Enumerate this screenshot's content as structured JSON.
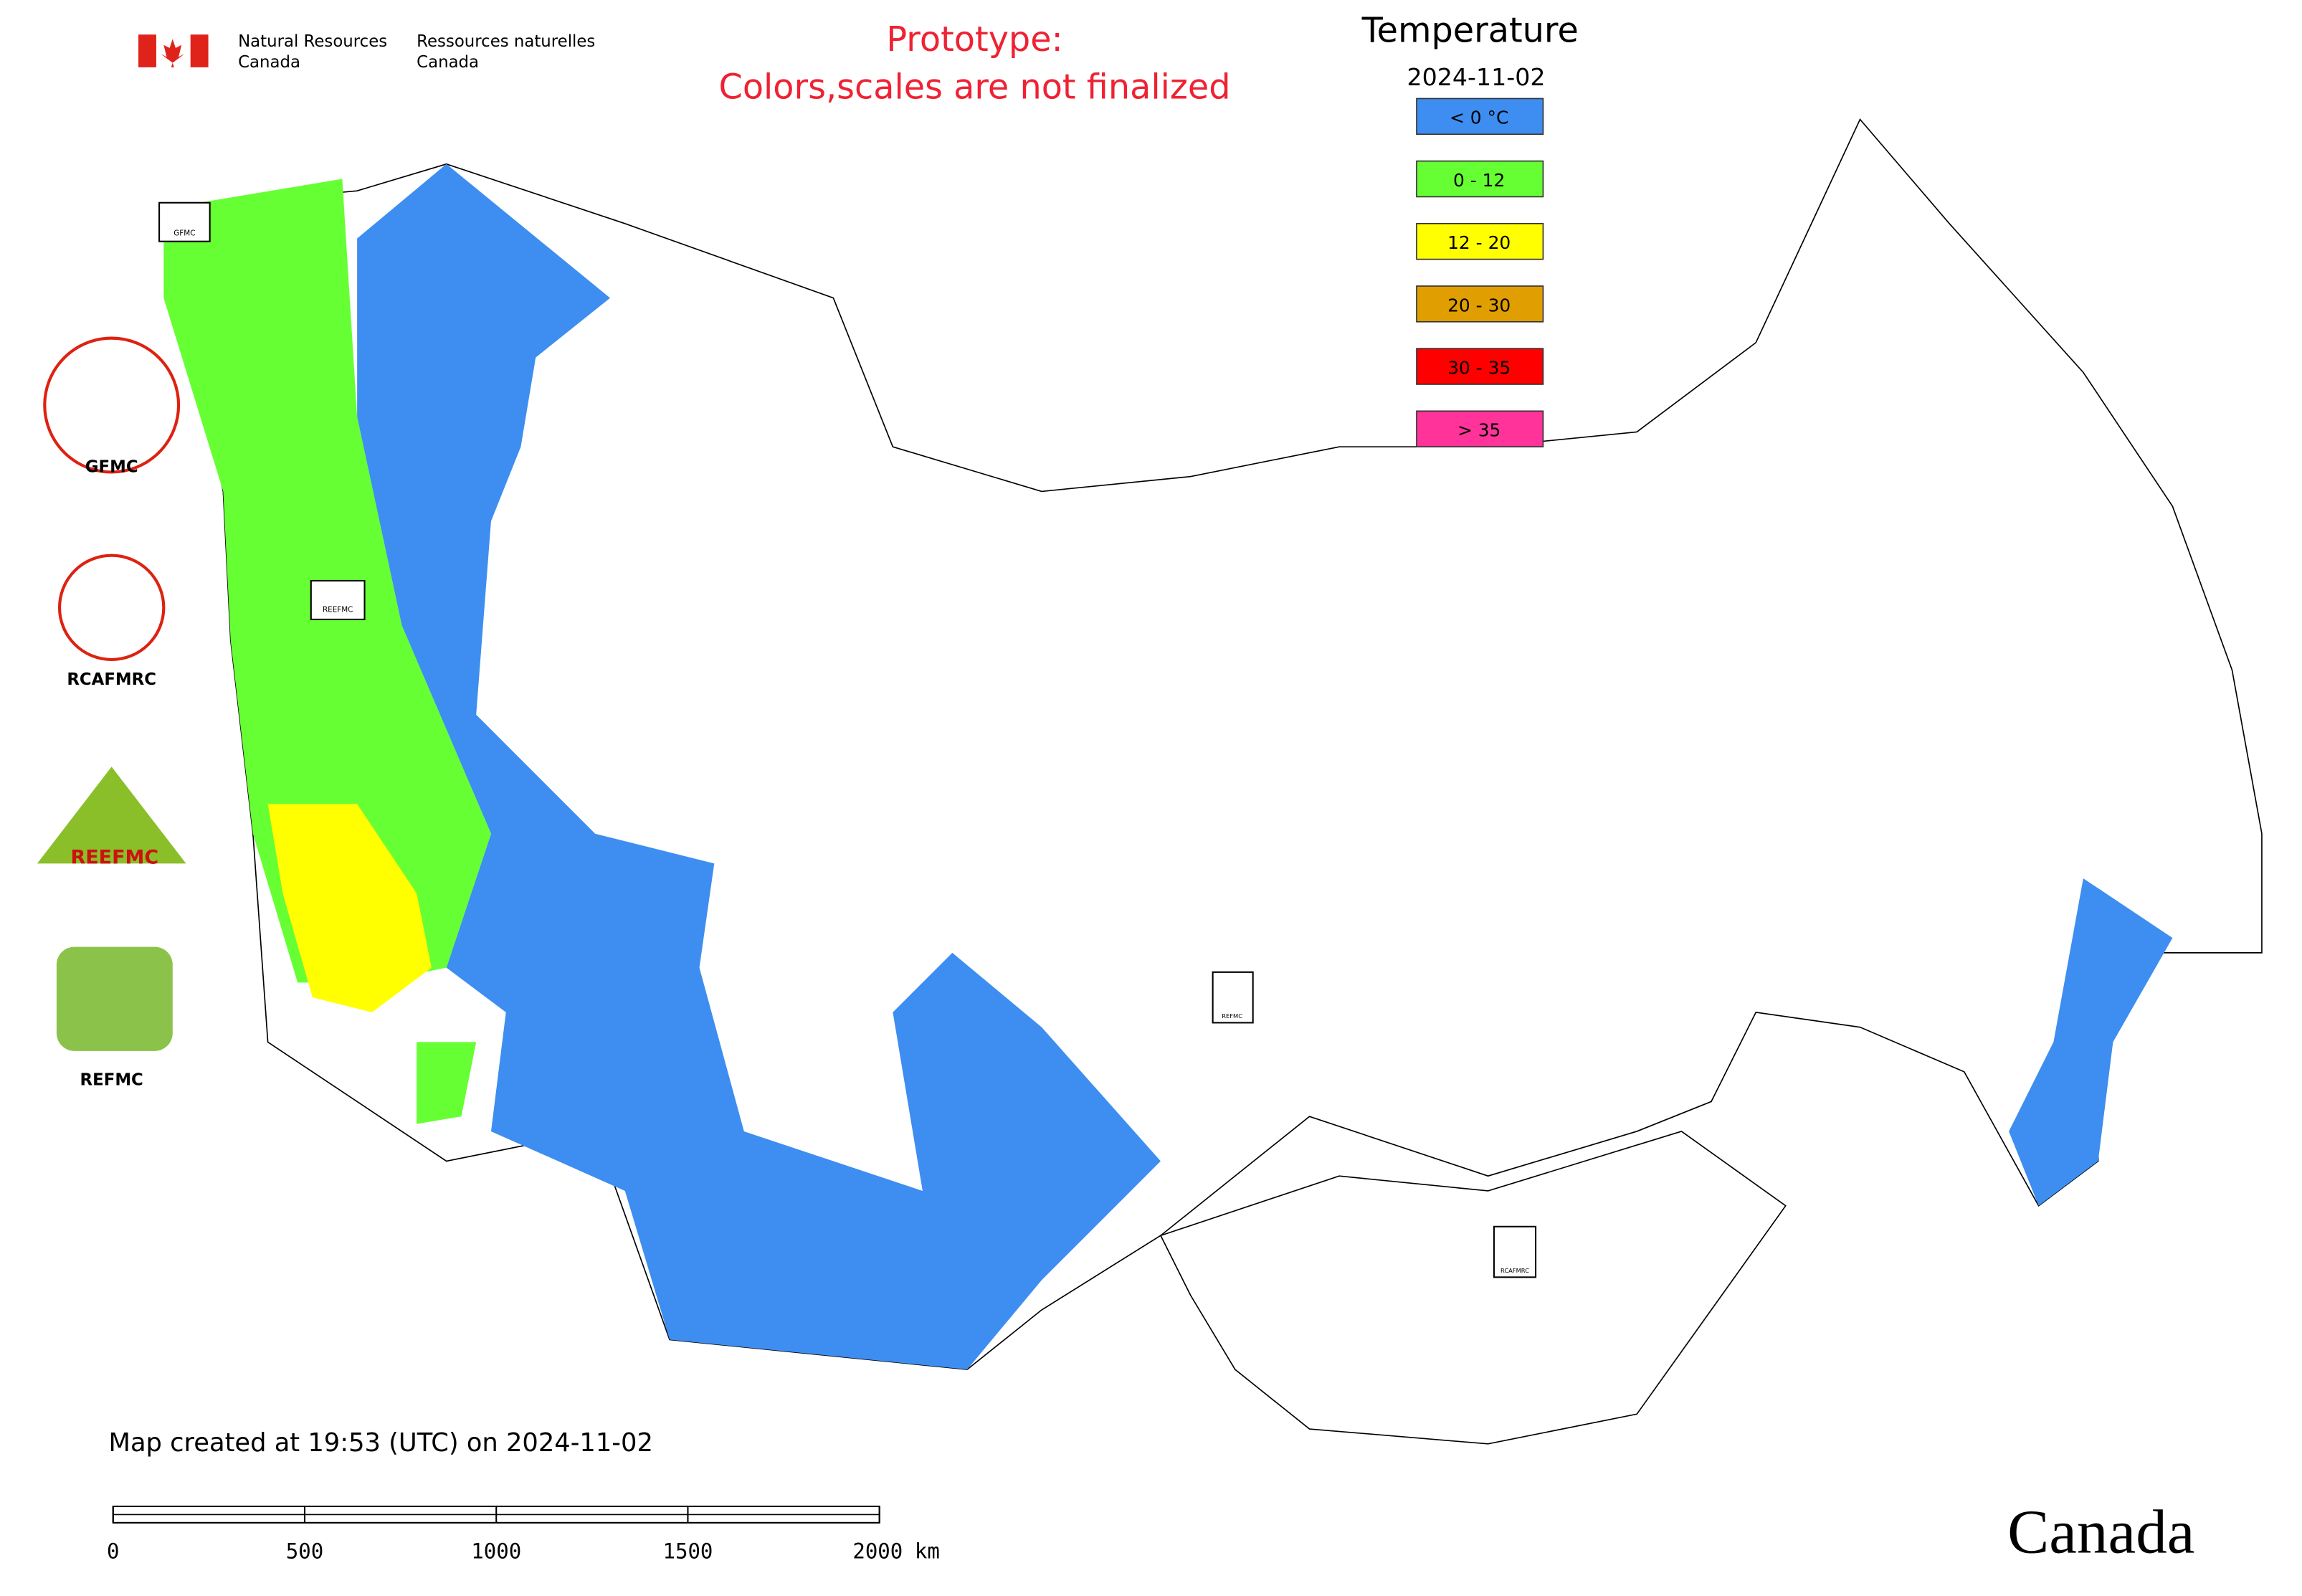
{
  "header": {
    "agency_en": [
      "Natural Resources",
      "Canada"
    ],
    "agency_fr": [
      "Ressources naturelles",
      "Canada"
    ],
    "notice": [
      "Prototype:",
      "Colors,scales are not finalized"
    ]
  },
  "legend": {
    "title": "Temperature",
    "date": "2024-11-02",
    "items": [
      {
        "label": "< 0 °C",
        "color": "#3d8ef0"
      },
      {
        "label": "0 - 12",
        "color": "#66ff33"
      },
      {
        "label": "12 - 20",
        "color": "#ffff00"
      },
      {
        "label": "20 - 30",
        "color": "#e09e00"
      },
      {
        "label": "30 - 35",
        "color": "#ff0000"
      },
      {
        "label": "> 35",
        "color": "#ff3399"
      }
    ]
  },
  "logos": [
    "GFMC",
    "RCAFMRC",
    "REEFMC",
    "REFMC"
  ],
  "footer": {
    "created": "Map created at 19:53 (UTC) on 2024-11-02",
    "scale": {
      "ticks": [
        0,
        500,
        1000,
        1500,
        2000
      ],
      "unit": "km"
    },
    "wordmark": "Canada"
  }
}
